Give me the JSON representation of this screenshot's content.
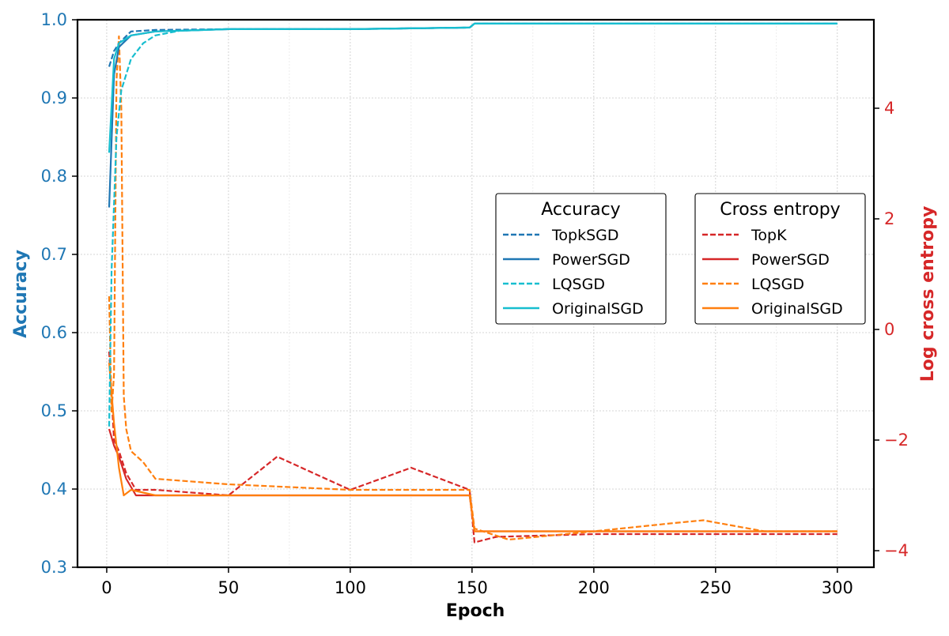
{
  "chart_data": {
    "type": "line",
    "title": "",
    "xlabel": "Epoch",
    "ylabel_left": "Accuracy",
    "ylabel_right": "Log cross entropy",
    "xlim": [
      -12,
      315
    ],
    "ylim_left": [
      0.3,
      1.0
    ],
    "ylim_right": [
      -4.3,
      5.6
    ],
    "x_ticks": [
      0,
      50,
      100,
      150,
      200,
      250,
      300
    ],
    "y_left_ticks": [
      0.3,
      0.4,
      0.5,
      0.6,
      0.7,
      0.8,
      0.9,
      1.0
    ],
    "y_right_ticks": [
      -4,
      -2,
      0,
      2,
      4
    ],
    "grid": true,
    "colors": {
      "left_axis": "#1f77b4",
      "right_axis": "#d62728",
      "blue": "#1f77b4",
      "cyan": "#17becf",
      "red": "#d62728",
      "orange": "#ff7f0e"
    },
    "legends": [
      {
        "title": "Accuracy",
        "placement": "center-right",
        "entries": [
          {
            "label": "TopkSGD",
            "color": "#1f77b4",
            "dash": true
          },
          {
            "label": "PowerSGD",
            "color": "#1f77b4",
            "dash": false
          },
          {
            "label": "LQSGD",
            "color": "#17becf",
            "dash": true
          },
          {
            "label": "OriginalSGD",
            "color": "#17becf",
            "dash": false
          }
        ]
      },
      {
        "title": "Cross entropy",
        "placement": "center-right",
        "entries": [
          {
            "label": "TopK",
            "color": "#d62728",
            "dash": true
          },
          {
            "label": "PowerSGD",
            "color": "#d62728",
            "dash": false
          },
          {
            "label": "LQSGD",
            "color": "#ff7f0e",
            "dash": true
          },
          {
            "label": "OriginalSGD",
            "color": "#ff7f0e",
            "dash": false
          }
        ]
      }
    ],
    "series": [
      {
        "name": "TopkSGD",
        "axis": "left",
        "color": "#1f77b4",
        "dash": true,
        "x": [
          1,
          3,
          5,
          10,
          20,
          50,
          100,
          149,
          151,
          200,
          250,
          300
        ],
        "y": [
          0.94,
          0.96,
          0.97,
          0.985,
          0.987,
          0.988,
          0.988,
          0.99,
          0.995,
          0.995,
          0.995,
          0.995
        ]
      },
      {
        "name": "PowerSGD",
        "axis": "left",
        "color": "#1f77b4",
        "dash": false,
        "x": [
          1,
          3,
          5,
          10,
          20,
          50,
          100,
          149,
          151,
          200,
          250,
          300
        ],
        "y": [
          0.76,
          0.93,
          0.965,
          0.98,
          0.985,
          0.988,
          0.988,
          0.99,
          0.995,
          0.995,
          0.995,
          0.995
        ]
      },
      {
        "name": "LQSGD",
        "axis": "left",
        "color": "#17becf",
        "dash": true,
        "x": [
          1,
          2,
          4,
          6,
          10,
          15,
          20,
          30,
          50,
          100,
          149,
          151,
          200,
          250,
          300
        ],
        "y": [
          0.48,
          0.68,
          0.85,
          0.91,
          0.95,
          0.97,
          0.98,
          0.986,
          0.988,
          0.988,
          0.99,
          0.995,
          0.995,
          0.995,
          0.995
        ]
      },
      {
        "name": "OriginalSGD",
        "axis": "left",
        "color": "#17becf",
        "dash": false,
        "x": [
          1,
          3,
          5,
          10,
          20,
          50,
          100,
          149,
          151,
          200,
          250,
          300
        ],
        "y": [
          0.83,
          0.95,
          0.97,
          0.98,
          0.985,
          0.988,
          0.988,
          0.99,
          0.995,
          0.995,
          0.995,
          0.995
        ]
      },
      {
        "name": "TopK",
        "axis": "right",
        "color": "#d62728",
        "dash": true,
        "x": [
          1,
          3,
          5,
          8,
          12,
          20,
          50,
          70,
          100,
          125,
          149,
          151,
          160,
          200,
          250,
          300
        ],
        "y": [
          -0.4,
          -2.0,
          -2.2,
          -2.6,
          -2.9,
          -2.9,
          -3.0,
          -2.3,
          -2.9,
          -2.5,
          -2.9,
          -3.85,
          -3.75,
          -3.7,
          -3.7,
          -3.7
        ]
      },
      {
        "name": "PowerSGD",
        "axis": "right",
        "color": "#d62728",
        "dash": false,
        "x": [
          1,
          3,
          5,
          8,
          12,
          20,
          50,
          100,
          149,
          151,
          160,
          200,
          250,
          300
        ],
        "y": [
          -1.8,
          -2.1,
          -2.3,
          -2.7,
          -3.0,
          -3.0,
          -3.0,
          -3.0,
          -3.0,
          -3.65,
          -3.65,
          -3.65,
          -3.65,
          -3.65
        ]
      },
      {
        "name": "LQSGD",
        "axis": "right",
        "color": "#ff7f0e",
        "dash": true,
        "x": [
          1,
          2,
          3,
          4,
          5,
          6,
          7,
          8,
          10,
          15,
          20,
          50,
          100,
          149,
          151,
          165,
          200,
          233,
          245,
          270,
          300
        ],
        "y": [
          0.6,
          -1.5,
          -0.8,
          4.5,
          5.3,
          4.0,
          -1.2,
          -1.8,
          -2.2,
          -2.4,
          -2.7,
          -2.8,
          -2.9,
          -2.9,
          -3.6,
          -3.8,
          -3.65,
          -3.5,
          -3.45,
          -3.65,
          -3.65
        ]
      },
      {
        "name": "OriginalSGD",
        "axis": "right",
        "color": "#ff7f0e",
        "dash": false,
        "x": [
          1,
          3,
          5,
          7,
          10,
          20,
          50,
          100,
          149,
          151,
          200,
          250,
          300
        ],
        "y": [
          -0.6,
          -1.7,
          -2.5,
          -3.0,
          -2.9,
          -3.0,
          -3.0,
          -3.0,
          -3.0,
          -3.65,
          -3.65,
          -3.65,
          -3.65
        ]
      }
    ]
  }
}
